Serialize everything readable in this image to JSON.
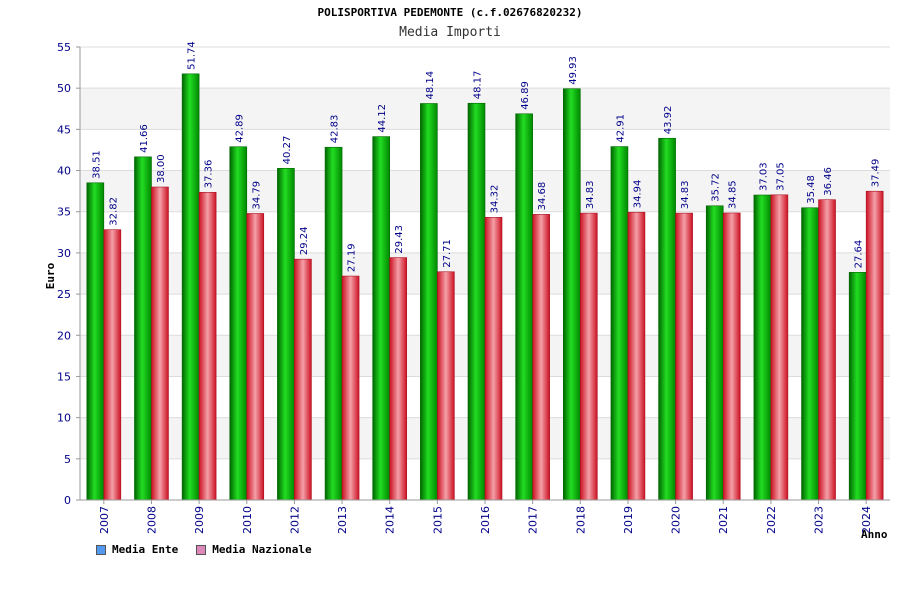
{
  "chart_data": {
    "type": "bar",
    "title": "POLISPORTIVA PEDEMONTE (c.f.02676820232)",
    "subtitle": "Media Importi",
    "ylabel": "Euro",
    "xlabel": "Anno",
    "ylim": [
      0,
      55
    ],
    "yticks": [
      0,
      5,
      10,
      15,
      20,
      25,
      30,
      35,
      40,
      45,
      50,
      55
    ],
    "grid": true,
    "legend_position": "bottom-left",
    "categories": [
      "2007",
      "2008",
      "2009",
      "2010",
      "2012",
      "2013",
      "2014",
      "2015",
      "2016",
      "2017",
      "2018",
      "2019",
      "2020",
      "2021",
      "2022",
      "2023",
      "2024"
    ],
    "series": [
      {
        "name": "Media Ente",
        "color": "#00aa00",
        "legend_color": "#5599ee",
        "values": [
          38.51,
          41.66,
          51.74,
          42.89,
          40.27,
          42.83,
          44.12,
          48.14,
          48.17,
          46.89,
          49.93,
          42.91,
          43.92,
          35.72,
          37.03,
          35.48,
          27.64
        ],
        "labels": [
          "38.51",
          "41.66",
          "51.74",
          "42.89",
          "40.27",
          "42.83",
          "44.12",
          "48.14",
          "48.17",
          "46.89",
          "49.93",
          "42.91",
          "43.92",
          "35.72",
          "37.03",
          "35.48",
          "27.64"
        ]
      },
      {
        "name": "Media Nazionale",
        "color": "#dd2233",
        "legend_color": "#dd88bb",
        "values": [
          32.82,
          38.0,
          37.36,
          34.79,
          29.24,
          27.19,
          29.43,
          27.71,
          34.32,
          34.68,
          34.83,
          34.94,
          34.83,
          34.85,
          37.05,
          36.46,
          37.49
        ],
        "labels": [
          "32.82",
          "38.00",
          "37.36",
          "34.79",
          "29.24",
          "27.19",
          "29.43",
          "27.71",
          "34.32",
          "34.68",
          "34.83",
          "34.94",
          "34.83",
          "34.85",
          "37.05",
          "36.46",
          "37.49"
        ]
      }
    ]
  }
}
